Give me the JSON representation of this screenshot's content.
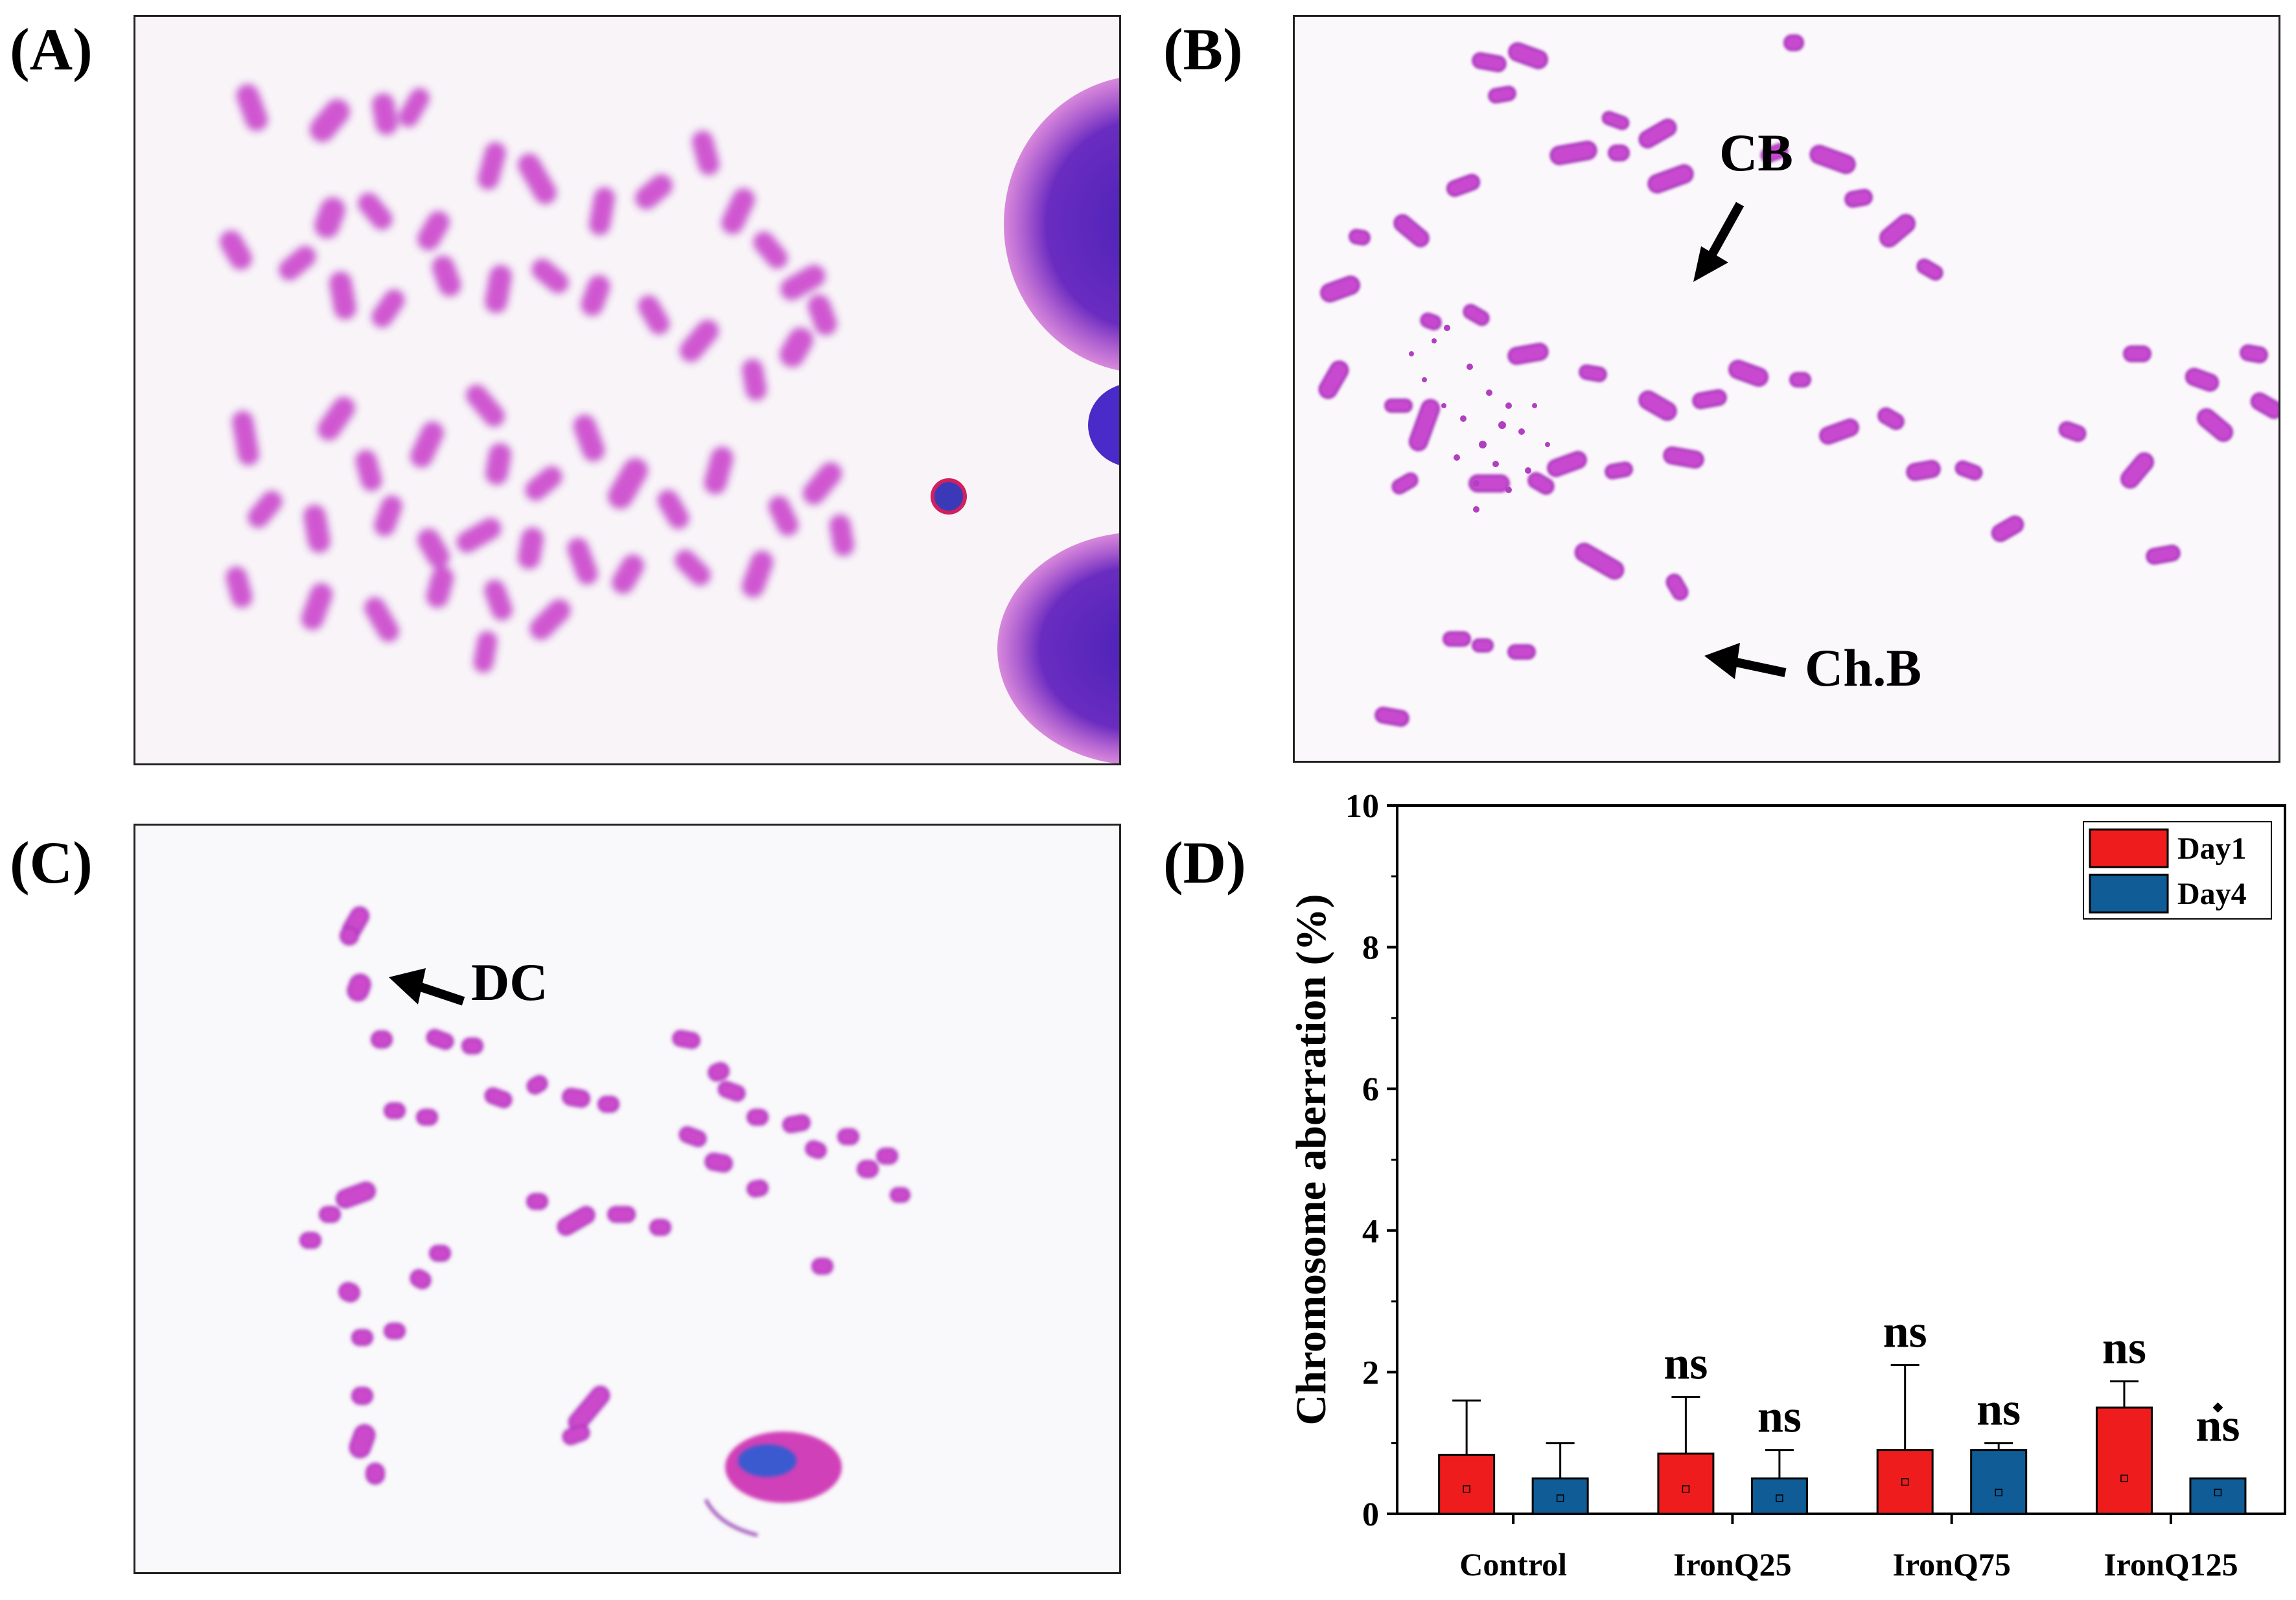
{
  "panels": {
    "a": {
      "label": "(A)"
    },
    "b": {
      "label": "(B)",
      "annotations": {
        "cb": "CB",
        "chb": "Ch.B"
      }
    },
    "c": {
      "label": "(C)",
      "annotations": {
        "dc": "DC"
      }
    },
    "d": {
      "label": "(D)"
    }
  },
  "colors": {
    "stain_pink": "#d03fd0",
    "stain_purple": "#9c2fbf",
    "nucleus_blue": "#5a2ac0",
    "background": "#f8f4f8",
    "day1": "#ee1c1c",
    "day4": "#0f5c96"
  },
  "chart_data": {
    "type": "bar",
    "ylabel": "Chromosome aberration (%)",
    "xlabel": "",
    "ylim": [
      0,
      10
    ],
    "yticks": [
      0,
      2,
      4,
      6,
      8,
      10
    ],
    "yticks_labels": [
      "0",
      "2",
      "4",
      "6",
      "8",
      "10"
    ],
    "categories": [
      "Control",
      "IronQ25",
      "IronQ75",
      "IronQ125"
    ],
    "legend": {
      "position": "top-right"
    },
    "series": [
      {
        "name": "Day1",
        "color": "#ee1c1c",
        "values": [
          0.83,
          0.85,
          0.9,
          1.5
        ],
        "error_upper": [
          1.6,
          1.65,
          2.1,
          1.87
        ],
        "point_markers": [
          0.35,
          0.35,
          0.45,
          0.5
        ],
        "significance": [
          "",
          "ns",
          "ns",
          "ns"
        ]
      },
      {
        "name": "Day4",
        "color": "#0f5c96",
        "values": [
          0.5,
          0.5,
          0.9,
          0.5
        ],
        "error_upper": [
          1.0,
          0.9,
          1.0,
          0.5
        ],
        "point_markers": [
          0.22,
          0.22,
          0.3,
          0.3
        ],
        "significance": [
          "",
          "ns",
          "ns",
          "ns"
        ],
        "outliers": [
          null,
          null,
          null,
          1.5
        ]
      }
    ]
  }
}
